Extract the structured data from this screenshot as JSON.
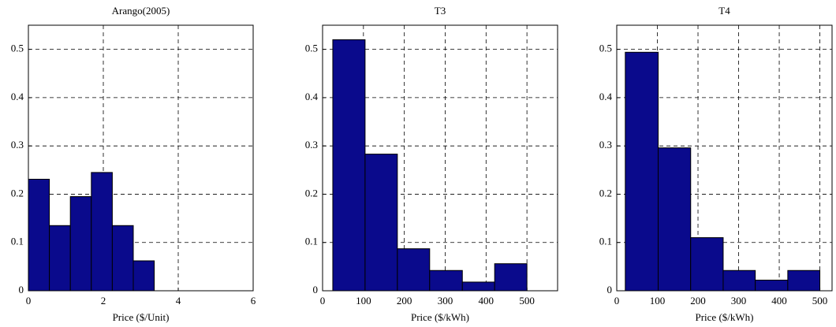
{
  "chart_data": [
    {
      "type": "histogram",
      "title": "Arango(2005)",
      "xlabel": "Price ($/Unit)",
      "bins": [
        0,
        0.56,
        1.12,
        1.68,
        2.24,
        2.8,
        3.36
      ],
      "values": [
        0.231,
        0.135,
        0.195,
        0.245,
        0.135,
        0.062
      ],
      "color": "#0a0a8c",
      "xlim": [
        0,
        6
      ],
      "ylim": [
        0,
        0.55
      ],
      "xticks": [
        0,
        2,
        4,
        6
      ],
      "yticks": [
        0,
        0.1,
        0.2,
        0.3,
        0.4,
        0.5
      ],
      "grid": true
    },
    {
      "type": "histogram",
      "title": "T3",
      "xlabel": "Price ($/kWh)",
      "bins": [
        25,
        104,
        183,
        262,
        342,
        421,
        500
      ],
      "values": [
        0.52,
        0.283,
        0.087,
        0.042,
        0.018,
        0.056
      ],
      "color": "#0a0a8c",
      "xlim": [
        0,
        575
      ],
      "ylim": [
        0,
        0.55
      ],
      "xticks": [
        0,
        100,
        200,
        300,
        400,
        500
      ],
      "yticks": [
        0,
        0.1,
        0.2,
        0.3,
        0.4,
        0.5
      ],
      "grid": true
    },
    {
      "type": "histogram",
      "title": "T4",
      "xlabel": "Price ($/kWh)",
      "bins": [
        21,
        102,
        182,
        262,
        341,
        421,
        500
      ],
      "values": [
        0.494,
        0.296,
        0.11,
        0.042,
        0.022,
        0.042
      ],
      "color": "#0a0a8c",
      "xlim": [
        0,
        530
      ],
      "ylim": [
        0,
        0.55
      ],
      "xticks": [
        0,
        100,
        200,
        300,
        400,
        500
      ],
      "yticks": [
        0,
        0.1,
        0.2,
        0.3,
        0.4,
        0.5
      ],
      "grid": true
    }
  ]
}
